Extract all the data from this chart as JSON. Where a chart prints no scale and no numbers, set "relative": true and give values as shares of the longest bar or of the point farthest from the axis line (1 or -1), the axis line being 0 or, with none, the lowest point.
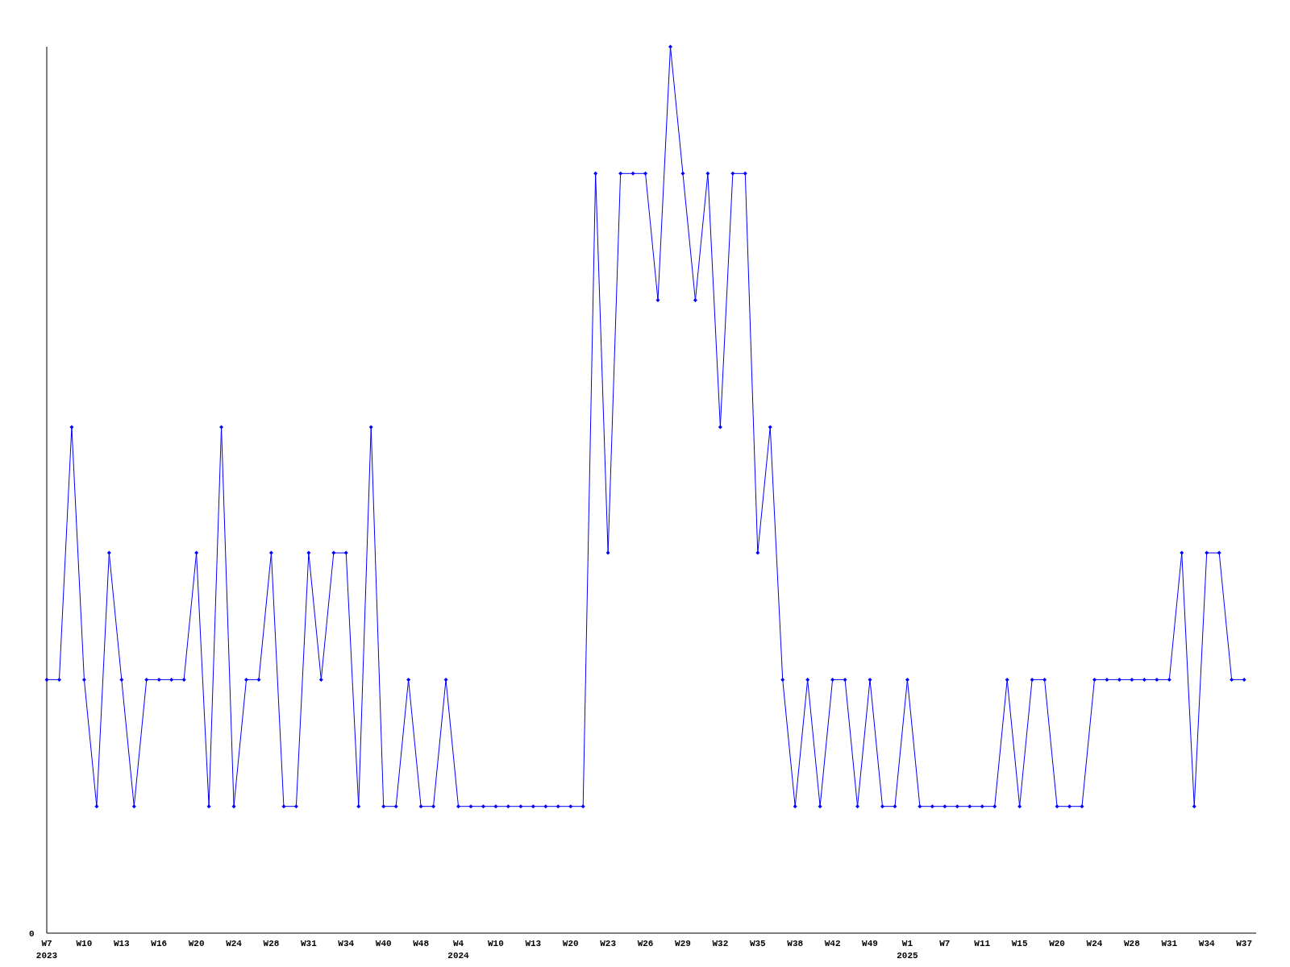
{
  "chart_data": {
    "type": "line",
    "relative": true,
    "color": "#0000ff",
    "marker": "diamond",
    "annotations": [
      "0"
    ],
    "categories": [
      "W7\n2023",
      null,
      null,
      "W10",
      null,
      null,
      "W13",
      null,
      null,
      "W16",
      null,
      null,
      "W20",
      null,
      null,
      "W24",
      null,
      null,
      "W28",
      null,
      null,
      "W31",
      null,
      null,
      "W34",
      null,
      null,
      "W40",
      null,
      null,
      "W48",
      null,
      null,
      "W4\n2024",
      null,
      null,
      "W10",
      null,
      null,
      "W13",
      null,
      null,
      "W20",
      null,
      null,
      "W23",
      null,
      null,
      "W26",
      null,
      null,
      "W29",
      null,
      null,
      "W32",
      null,
      null,
      "W35",
      null,
      null,
      "W38",
      null,
      null,
      "W42",
      null,
      null,
      "W49",
      null,
      null,
      "W1\n2025",
      null,
      null,
      "W7",
      null,
      null,
      "W11",
      null,
      null,
      "W15",
      null,
      null,
      "W20",
      null,
      null,
      "W24",
      null,
      null,
      "W28",
      null,
      null,
      "W31",
      null,
      null,
      "W34",
      null,
      null,
      "W37"
    ],
    "values": [
      0.286,
      0.286,
      0.571,
      0.286,
      0.143,
      0.429,
      0.286,
      0.143,
      0.286,
      0.286,
      0.286,
      0.286,
      0.429,
      0.143,
      0.571,
      0.143,
      0.286,
      0.286,
      0.429,
      0.143,
      0.143,
      0.429,
      0.286,
      0.429,
      0.429,
      0.143,
      0.571,
      0.143,
      0.143,
      0.286,
      0.143,
      0.143,
      0.286,
      0.143,
      0.143,
      0.143,
      0.143,
      0.143,
      0.143,
      0.143,
      0.143,
      0.143,
      0.143,
      0.143,
      0.857,
      0.429,
      0.857,
      0.857,
      0.857,
      0.714,
      1,
      0.857,
      0.714,
      0.857,
      0.571,
      0.857,
      0.857,
      0.429,
      0.571,
      0.286,
      0.143,
      0.286,
      0.143,
      0.286,
      0.286,
      0.143,
      0.286,
      0.143,
      0.143,
      0.286,
      0.143,
      0.143,
      0.143,
      0.143,
      0.143,
      0.143,
      0.143,
      0.286,
      0.143,
      0.286,
      0.286,
      0.143,
      0.143,
      0.143,
      0.286,
      0.286,
      0.286,
      0.286,
      0.286,
      0.286,
      0.286,
      0.429,
      0.143,
      0.429,
      0.429,
      0.286,
      0.286
    ]
  }
}
